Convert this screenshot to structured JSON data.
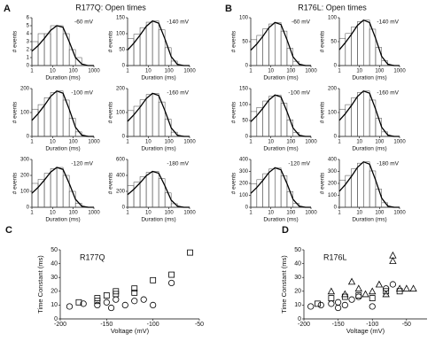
{
  "labels": {
    "panel_a": "A",
    "panel_b": "B",
    "panel_c": "C",
    "panel_d": "D",
    "title_a": "R177Q: Open times",
    "title_b": "R176L: Open times"
  },
  "chart_data": [
    {
      "type": "histogram",
      "annotation": "-60 mV",
      "log_x": true,
      "xlim": [
        1,
        1000
      ],
      "xticks": [
        1,
        10,
        100,
        1000
      ],
      "ylim": [
        0,
        6
      ],
      "yticks": [
        0,
        1,
        2,
        3,
        4,
        5,
        6
      ],
      "x_label": "Duration (ms)",
      "y_label": "# events",
      "bins": [
        1,
        2,
        4,
        8,
        16,
        32,
        64,
        128,
        256,
        512,
        1000
      ],
      "counts": [
        3,
        4,
        4,
        5,
        5,
        4,
        2,
        1,
        0,
        0
      ],
      "fit": [
        1.8,
        2.5,
        3.4,
        4.4,
        5,
        4.8,
        3,
        1,
        0.2,
        0,
        0
      ]
    },
    {
      "type": "histogram",
      "annotation": "-140 mV",
      "log_x": true,
      "xlim": [
        1,
        1000
      ],
      "xticks": [
        1,
        10,
        100,
        1000
      ],
      "ylim": [
        0,
        150
      ],
      "yticks": [
        0,
        50,
        100,
        150
      ],
      "x_label": "Duration (ms)",
      "y_label": "# events",
      "bins": [
        1,
        2,
        4,
        8,
        16,
        32,
        64,
        128,
        256,
        512,
        1000
      ],
      "counts": [
        84,
        98,
        119,
        136,
        140,
        112,
        56,
        14,
        1,
        0
      ],
      "fit": [
        49,
        70,
        95,
        123,
        140,
        133,
        84,
        28,
        4,
        0,
        0
      ]
    },
    {
      "type": "histogram",
      "annotation": "-100 mV",
      "log_x": true,
      "xlim": [
        1,
        1000
      ],
      "xticks": [
        1,
        10,
        100,
        1000
      ],
      "ylim": [
        0,
        200
      ],
      "yticks": [
        0,
        100,
        200
      ],
      "x_label": "Duration (ms)",
      "y_label": "# events",
      "bins": [
        1,
        2,
        4,
        8,
        16,
        32,
        64,
        128,
        256,
        512,
        1000
      ],
      "counts": [
        114,
        133,
        162,
        184,
        190,
        152,
        76,
        19,
        2,
        0
      ],
      "fit": [
        67,
        95,
        129,
        167,
        190,
        181,
        114,
        38,
        6,
        0,
        0
      ]
    },
    {
      "type": "histogram",
      "annotation": "-160 mV",
      "log_x": true,
      "xlim": [
        1,
        1000
      ],
      "xticks": [
        1,
        10,
        100,
        1000
      ],
      "ylim": [
        0,
        200
      ],
      "yticks": [
        0,
        100,
        200
      ],
      "x_label": "Duration (ms)",
      "y_label": "# events",
      "bins": [
        1,
        2,
        4,
        8,
        16,
        32,
        64,
        128,
        256,
        512,
        1000
      ],
      "counts": [
        108,
        126,
        153,
        175,
        180,
        144,
        72,
        18,
        2,
        0
      ],
      "fit": [
        63,
        90,
        122,
        158,
        180,
        171,
        108,
        36,
        5,
        0,
        0
      ]
    },
    {
      "type": "histogram",
      "annotation": "-120 mV",
      "log_x": true,
      "xlim": [
        1,
        1000
      ],
      "xticks": [
        1,
        10,
        100,
        1000
      ],
      "ylim": [
        0,
        300
      ],
      "yticks": [
        0,
        100,
        200,
        300
      ],
      "x_label": "Duration (ms)",
      "y_label": "# events",
      "bins": [
        1,
        2,
        4,
        8,
        16,
        32,
        64,
        128,
        256,
        512,
        1000
      ],
      "counts": [
        150,
        175,
        213,
        243,
        250,
        200,
        100,
        25,
        3,
        0
      ],
      "fit": [
        88,
        125,
        170,
        220,
        250,
        238,
        150,
        50,
        8,
        0,
        0
      ]
    },
    {
      "type": "histogram",
      "annotation": "-180 mV",
      "log_x": true,
      "xlim": [
        1,
        1000
      ],
      "xticks": [
        1,
        10,
        100,
        1000
      ],
      "ylim": [
        0,
        600
      ],
      "yticks": [
        0,
        200,
        400,
        600
      ],
      "x_label": "Duration (ms)",
      "y_label": "# events",
      "bins": [
        1,
        2,
        4,
        8,
        16,
        32,
        64,
        128,
        256,
        512,
        1000
      ],
      "counts": [
        270,
        315,
        383,
        437,
        450,
        360,
        180,
        45,
        5,
        0
      ],
      "fit": [
        158,
        225,
        306,
        396,
        450,
        428,
        270,
        90,
        14,
        0,
        0
      ]
    },
    {
      "type": "histogram",
      "annotation": "-60 mV",
      "log_x": true,
      "xlim": [
        1,
        1000
      ],
      "xticks": [
        1,
        10,
        100,
        1000
      ],
      "ylim": [
        0,
        100
      ],
      "yticks": [
        0,
        50,
        100
      ],
      "x_label": "Duration (ms)",
      "y_label": "# events",
      "bins": [
        1,
        2,
        4,
        8,
        16,
        32,
        64,
        128,
        256,
        512,
        1000
      ],
      "counts": [
        54,
        63,
        77,
        87,
        90,
        72,
        36,
        9,
        1,
        0
      ],
      "fit": [
        32,
        45,
        61,
        79,
        90,
        86,
        54,
        18,
        3,
        0,
        0
      ]
    },
    {
      "type": "histogram",
      "annotation": "-140 mV",
      "log_x": true,
      "xlim": [
        1,
        1000
      ],
      "xticks": [
        1,
        10,
        100,
        1000
      ],
      "ylim": [
        0,
        100
      ],
      "yticks": [
        0,
        50,
        100
      ],
      "x_label": "Duration (ms)",
      "y_label": "# events",
      "bins": [
        1,
        2,
        4,
        8,
        16,
        32,
        64,
        128,
        256,
        512,
        1000
      ],
      "counts": [
        57,
        67,
        81,
        92,
        95,
        76,
        38,
        10,
        1,
        0
      ],
      "fit": [
        33,
        48,
        65,
        84,
        95,
        90,
        57,
        19,
        3,
        0,
        0
      ]
    },
    {
      "type": "histogram",
      "annotation": "-100 mV",
      "log_x": true,
      "xlim": [
        1,
        1000
      ],
      "xticks": [
        1,
        10,
        100,
        1000
      ],
      "ylim": [
        0,
        150
      ],
      "yticks": [
        0,
        50,
        100,
        150
      ],
      "x_label": "Duration (ms)",
      "y_label": "# events",
      "bins": [
        1,
        2,
        4,
        8,
        16,
        32,
        64,
        128,
        256,
        512,
        1000
      ],
      "counts": [
        78,
        91,
        111,
        126,
        130,
        104,
        52,
        13,
        1,
        0
      ],
      "fit": [
        46,
        65,
        88,
        114,
        130,
        124,
        78,
        26,
        4,
        0,
        0
      ]
    },
    {
      "type": "histogram",
      "annotation": "-160 mV",
      "log_x": true,
      "xlim": [
        1,
        1000
      ],
      "xticks": [
        1,
        10,
        100,
        1000
      ],
      "ylim": [
        0,
        200
      ],
      "yticks": [
        0,
        100,
        200
      ],
      "x_label": "Duration (ms)",
      "y_label": "# events",
      "bins": [
        1,
        2,
        4,
        8,
        16,
        32,
        64,
        128,
        256,
        512,
        1000
      ],
      "counts": [
        114,
        133,
        162,
        184,
        190,
        152,
        76,
        19,
        2,
        0
      ],
      "fit": [
        67,
        95,
        129,
        167,
        190,
        181,
        114,
        38,
        6,
        0,
        0
      ]
    },
    {
      "type": "histogram",
      "annotation": "-120 mV",
      "log_x": true,
      "xlim": [
        1,
        1000
      ],
      "xticks": [
        1,
        10,
        100,
        1000
      ],
      "ylim": [
        0,
        400
      ],
      "yticks": [
        0,
        100,
        200,
        300,
        400
      ],
      "x_label": "Duration (ms)",
      "y_label": "# events",
      "bins": [
        1,
        2,
        4,
        8,
        16,
        32,
        64,
        128,
        256,
        512,
        1000
      ],
      "counts": [
        198,
        231,
        281,
        320,
        330,
        264,
        132,
        33,
        3,
        0
      ],
      "fit": [
        116,
        165,
        224,
        290,
        330,
        314,
        198,
        66,
        10,
        0,
        0
      ]
    },
    {
      "type": "histogram",
      "annotation": "-180 mV",
      "log_x": true,
      "xlim": [
        1,
        1000
      ],
      "xticks": [
        1,
        10,
        100,
        1000
      ],
      "ylim": [
        0,
        400
      ],
      "yticks": [
        0,
        100,
        200,
        300,
        400
      ],
      "x_label": "Duration (ms)",
      "y_label": "# events",
      "bins": [
        1,
        2,
        4,
        8,
        16,
        32,
        64,
        128,
        256,
        512,
        1000
      ],
      "counts": [
        228,
        266,
        323,
        369,
        380,
        304,
        152,
        38,
        4,
        0
      ],
      "fit": [
        133,
        190,
        258,
        334,
        380,
        361,
        228,
        76,
        11,
        0,
        0
      ]
    },
    {
      "type": "scatter",
      "title": "R177Q",
      "xlim": [
        -200,
        -50
      ],
      "xticks": [
        -200,
        -150,
        -100,
        -50
      ],
      "ylim": [
        0,
        50
      ],
      "yticks": [
        0,
        10,
        20,
        30,
        40,
        50
      ],
      "x_label": "Voltage (mV)",
      "y_label": "Time Constant (ms)",
      "series": [
        {
          "marker": "square",
          "color": "#000000",
          "x": [
            -180,
            -160,
            -160,
            -150,
            -140,
            -140,
            -120,
            -120,
            -100,
            -80,
            -60
          ],
          "values": [
            12,
            15,
            13,
            17,
            20,
            18,
            22,
            19,
            28,
            32,
            48
          ]
        },
        {
          "marker": "circle",
          "color": "#000000",
          "x": [
            -190,
            -175,
            -160,
            -150,
            -145,
            -140,
            -130,
            -120,
            -110,
            -100,
            -80
          ],
          "values": [
            9,
            11,
            10,
            12,
            8,
            14,
            10,
            13,
            14,
            10,
            26
          ]
        }
      ]
    },
    {
      "type": "scatter",
      "title": "R176L",
      "xlim": [
        -200,
        -20
      ],
      "xticks": [
        -200,
        -150,
        -100,
        -50
      ],
      "ylim": [
        0,
        50
      ],
      "yticks": [
        0,
        10,
        20,
        30,
        40,
        50
      ],
      "x_label": "Voltage (mV)",
      "y_label": "Time Constant (ms)",
      "series": [
        {
          "marker": "triangle",
          "color": "#000000",
          "x": [
            -160,
            -140,
            -130,
            -120,
            -110,
            -100,
            -90,
            -80,
            -70,
            -70,
            -60,
            -50,
            -40
          ],
          "values": [
            20,
            18,
            27,
            22,
            18,
            20,
            25,
            18,
            46,
            42,
            22,
            22,
            22
          ]
        },
        {
          "marker": "square",
          "color": "#000000",
          "x": [
            -180,
            -160,
            -140,
            -120,
            -100,
            -80,
            -60
          ],
          "values": [
            11,
            15,
            16,
            17,
            15,
            20,
            20
          ]
        },
        {
          "marker": "circle",
          "color": "#000000",
          "x": [
            -190,
            -175,
            -160,
            -150,
            -150,
            -140,
            -130,
            -120,
            -100,
            -80,
            -70
          ],
          "values": [
            9,
            10,
            11,
            12,
            8,
            10,
            14,
            16,
            9,
            22,
            25
          ]
        }
      ]
    }
  ]
}
